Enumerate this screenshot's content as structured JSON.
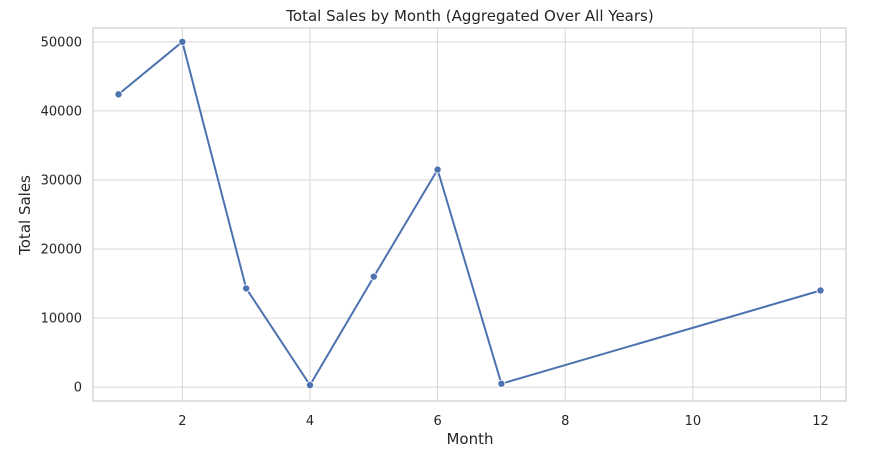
{
  "chart_data": {
    "type": "line",
    "title": "Total Sales by Month (Aggregated Over All Years)",
    "xlabel": "Month",
    "ylabel": "Total Sales",
    "xlim": [
      0.6,
      12.4
    ],
    "ylim": [
      -2000,
      52000
    ],
    "xticks": [
      2,
      4,
      6,
      8,
      10,
      12
    ],
    "yticks": [
      0,
      10000,
      20000,
      30000,
      40000,
      50000
    ],
    "grid": true,
    "series": [
      {
        "color": "#4c72b0",
        "x": [
          1,
          2,
          3,
          4,
          5,
          6,
          7,
          12
        ],
        "y": [
          42400,
          50000,
          14300,
          300,
          16000,
          31500,
          500,
          14000
        ]
      }
    ]
  }
}
